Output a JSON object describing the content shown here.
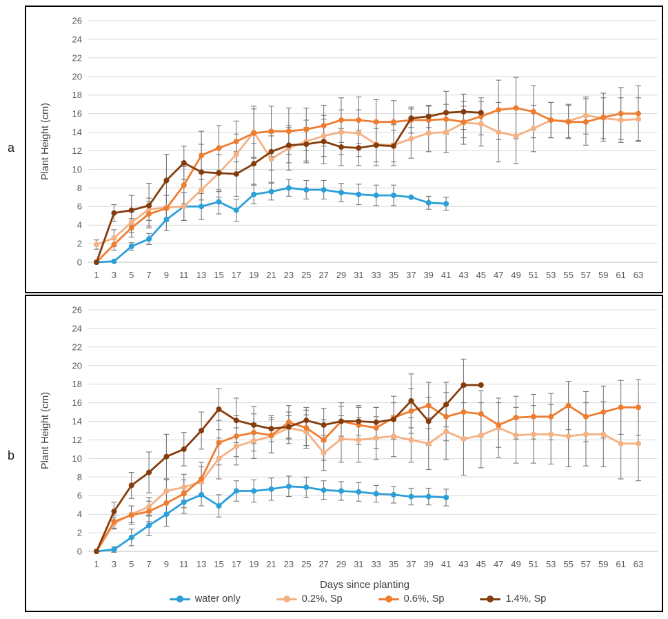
{
  "panels": [
    {
      "label": "a"
    },
    {
      "label": "b"
    }
  ],
  "legend": {
    "items": [
      {
        "label": "water only",
        "color": "#2C9FD8"
      },
      {
        "label": "0.2%, Sp",
        "color": "#F4B183"
      },
      {
        "label": "0.6%, Sp",
        "color": "#ED7D31"
      },
      {
        "label": "1.4%, Sp",
        "color": "#843C0C"
      }
    ]
  },
  "colors": {
    "gridline": "#D9D9D9",
    "axis_line": "#BFBFBF",
    "error_bar": "#777777",
    "tick_text": "#595959"
  },
  "chart_data": [
    {
      "type": "line",
      "panel": "a",
      "title": "",
      "xlabel": "",
      "ylabel": "Plant Height (cm)",
      "ylim": [
        0,
        26
      ],
      "ytick_step": 2,
      "grid": true,
      "legend_position": "bottom",
      "xticks": [
        1,
        3,
        5,
        7,
        9,
        11,
        13,
        15,
        17,
        19,
        21,
        23,
        25,
        27,
        29,
        31,
        33,
        35,
        37,
        39,
        41,
        43,
        45,
        47,
        49,
        51,
        53,
        55,
        57,
        59,
        61,
        63
      ],
      "series": [
        {
          "name": "water only",
          "color": "#2C9FD8",
          "x": [
            1,
            3,
            5,
            7,
            9,
            11,
            13,
            15,
            17,
            19,
            21,
            23,
            25,
            27,
            29,
            31,
            33,
            35,
            37,
            39,
            41
          ],
          "y": [
            0,
            0.1,
            1.7,
            2.5,
            4.6,
            6.0,
            6.0,
            6.5,
            5.6,
            7.3,
            7.6,
            8.0,
            7.8,
            7.8,
            7.5,
            7.3,
            7.2,
            7.2,
            7.0,
            6.4,
            6.3
          ],
          "err": [
            0,
            0,
            0.4,
            0.6,
            1.2,
            1.5,
            1.4,
            1.3,
            1.2,
            1.0,
            0.9,
            0.9,
            1.0,
            1.0,
            1.0,
            1.1,
            1.1,
            1.1,
            0,
            0.7,
            0.7
          ]
        },
        {
          "name": "0.2%, Sp",
          "color": "#F4B183",
          "x": [
            1,
            3,
            5,
            7,
            9,
            11,
            13,
            15,
            17,
            19,
            21,
            23,
            25,
            27,
            29,
            31,
            33,
            35,
            37,
            39,
            41,
            43,
            45,
            47,
            49,
            51,
            53,
            55,
            57,
            59,
            61,
            63
          ],
          "y": [
            1.9,
            2.6,
            4.3,
            5.7,
            5.9,
            6.0,
            7.8,
            9.6,
            11.6,
            14.0,
            11.1,
            12.3,
            13.0,
            13.6,
            14.0,
            13.9,
            12.7,
            12.6,
            13.3,
            13.9,
            14.0,
            15.0,
            14.9,
            14.0,
            13.6,
            14.4,
            15.3,
            15.2,
            15.8,
            15.5,
            15.3,
            15.4
          ],
          "err": [
            0.5,
            0.9,
            1.1,
            1.2,
            1.3,
            1.5,
            1.8,
            2.0,
            2.2,
            2.8,
            2.5,
            2.4,
            2.3,
            2.2,
            2.4,
            2.5,
            2.3,
            2.2,
            2.1,
            2.0,
            2.2,
            2.3,
            2.4,
            3.2,
            3.0,
            2.5,
            1.9,
            1.8,
            2.0,
            2.2,
            2.4,
            2.3
          ]
        },
        {
          "name": "0.6%, Sp",
          "color": "#ED7D31",
          "x": [
            1,
            3,
            5,
            7,
            9,
            11,
            13,
            15,
            17,
            19,
            21,
            23,
            25,
            27,
            29,
            31,
            33,
            35,
            37,
            39,
            41,
            43,
            45,
            47,
            49,
            51,
            53,
            55,
            57,
            59,
            61,
            63
          ],
          "y": [
            0,
            1.9,
            3.7,
            5.2,
            5.8,
            8.3,
            11.5,
            12.3,
            13.0,
            13.9,
            14.1,
            14.1,
            14.3,
            14.7,
            15.3,
            15.3,
            15.1,
            15.1,
            15.3,
            15.3,
            15.4,
            15.1,
            15.7,
            16.4,
            16.6,
            16.2,
            15.3,
            15.1,
            15.1,
            15.6,
            16.0,
            16.0
          ],
          "err": [
            0,
            0.6,
            1.0,
            1.3,
            1.4,
            2.0,
            2.6,
            2.4,
            2.2,
            2.6,
            2.7,
            2.5,
            2.3,
            2.2,
            2.4,
            2.5,
            2.4,
            2.3,
            1.4,
            1.5,
            1.6,
            1.7,
            2.0,
            3.2,
            3.3,
            2.8,
            1.9,
            1.8,
            2.5,
            2.6,
            2.8,
            3.0
          ]
        },
        {
          "name": "1.4%, Sp",
          "color": "#843C0C",
          "x": [
            1,
            3,
            5,
            7,
            9,
            11,
            13,
            15,
            17,
            19,
            21,
            23,
            25,
            27,
            29,
            31,
            33,
            35,
            37,
            39,
            41,
            43,
            45
          ],
          "y": [
            0,
            5.3,
            5.6,
            6.1,
            8.8,
            10.7,
            9.7,
            9.6,
            9.5,
            10.6,
            11.9,
            12.6,
            12.7,
            13.0,
            12.4,
            12.3,
            12.6,
            12.5,
            15.5,
            15.7,
            16.1,
            16.2,
            16.1
          ],
          "err": [
            0,
            0.9,
            1.6,
            2.4,
            2.8,
            1.8,
            3.0,
            2.6,
            2.4,
            2.2,
            2.0,
            1.9,
            1.8,
            2.4,
            2.0,
            1.9,
            1.8,
            1.7,
            1.0,
            1.2,
            2.3,
            1.9,
            0
          ]
        }
      ]
    },
    {
      "type": "line",
      "panel": "b",
      "title": "",
      "xlabel": "Days since planting",
      "ylabel": "Plant Height (cm)",
      "ylim": [
        0,
        26
      ],
      "ytick_step": 2,
      "grid": true,
      "legend_position": "bottom",
      "xticks": [
        1,
        3,
        5,
        7,
        9,
        11,
        13,
        15,
        17,
        19,
        21,
        23,
        25,
        27,
        29,
        31,
        33,
        35,
        37,
        39,
        41,
        43,
        45,
        47,
        49,
        51,
        53,
        55,
        57,
        59,
        61,
        63
      ],
      "series": [
        {
          "name": "water only",
          "color": "#2C9FD8",
          "x": [
            1,
            3,
            5,
            7,
            9,
            11,
            13,
            15,
            17,
            19,
            21,
            23,
            25,
            27,
            29,
            31,
            33,
            35,
            37,
            39,
            41
          ],
          "y": [
            0,
            0.2,
            1.5,
            2.8,
            4.0,
            5.3,
            6.1,
            4.9,
            6.5,
            6.5,
            6.7,
            7.0,
            6.9,
            6.6,
            6.5,
            6.4,
            6.2,
            6.1,
            5.9,
            5.9,
            5.8
          ],
          "err": [
            0,
            0.3,
            0.9,
            1.1,
            1.3,
            1.2,
            1.2,
            1.2,
            1.1,
            1.2,
            1.2,
            1.1,
            1.1,
            1.0,
            1.0,
            1.0,
            0.9,
            0.9,
            0.9,
            0.9,
            0.9
          ]
        },
        {
          "name": "0.2%, Sp",
          "color": "#F4B183",
          "x": [
            1,
            3,
            5,
            7,
            9,
            11,
            13,
            15,
            17,
            19,
            21,
            23,
            25,
            27,
            29,
            31,
            33,
            35,
            37,
            39,
            41,
            43,
            45,
            47,
            49,
            51,
            53,
            55,
            57,
            59,
            61,
            63
          ],
          "y": [
            0,
            3.0,
            4.0,
            4.8,
            6.5,
            6.9,
            7.5,
            10.0,
            11.3,
            11.9,
            12.4,
            13.3,
            12.9,
            10.6,
            12.1,
            12.0,
            12.2,
            12.4,
            12.0,
            11.6,
            12.9,
            12.1,
            12.5,
            13.3,
            12.5,
            12.6,
            12.6,
            12.4,
            12.6,
            12.6,
            11.6,
            11.6
          ],
          "err": [
            0,
            0.6,
            0.9,
            1.0,
            1.2,
            1.4,
            1.6,
            2.2,
            2.0,
            1.9,
            1.8,
            1.7,
            1.8,
            1.9,
            2.5,
            2.4,
            2.3,
            2.2,
            2.4,
            2.8,
            3.0,
            3.9,
            3.5,
            3.2,
            3.0,
            3.1,
            3.2,
            3.3,
            3.4,
            3.5,
            3.8,
            4.0
          ]
        },
        {
          "name": "0.6%, Sp",
          "color": "#ED7D31",
          "x": [
            1,
            3,
            5,
            7,
            9,
            11,
            13,
            15,
            17,
            19,
            21,
            23,
            25,
            27,
            29,
            31,
            33,
            35,
            37,
            39,
            41,
            43,
            45,
            47,
            49,
            51,
            53,
            55,
            57,
            59,
            61,
            63
          ],
          "y": [
            0,
            3.2,
            3.9,
            4.3,
            5.2,
            6.2,
            7.8,
            11.7,
            12.4,
            12.8,
            12.5,
            13.9,
            13.3,
            12.0,
            14.0,
            13.6,
            13.3,
            14.4,
            15.1,
            15.7,
            14.5,
            15.0,
            14.8,
            13.6,
            14.4,
            14.5,
            14.5,
            15.7,
            14.5,
            15.0,
            15.5,
            15.5
          ],
          "err": [
            0,
            0.7,
            1.0,
            1.1,
            1.3,
            1.5,
            1.8,
            2.4,
            2.2,
            2.0,
            1.9,
            1.8,
            1.9,
            2.2,
            2.0,
            2.1,
            2.2,
            2.3,
            2.4,
            2.5,
            2.6,
            2.7,
            2.5,
            2.4,
            2.3,
            2.4,
            2.5,
            2.6,
            2.7,
            2.8,
            2.9,
            3.0
          ]
        },
        {
          "name": "1.4%, Sp",
          "color": "#843C0C",
          "x": [
            1,
            3,
            5,
            7,
            9,
            11,
            13,
            15,
            17,
            19,
            21,
            23,
            25,
            27,
            29,
            31,
            33,
            35,
            37,
            39,
            41,
            43,
            45
          ],
          "y": [
            0,
            4.3,
            7.1,
            8.5,
            10.2,
            11.0,
            13.0,
            15.3,
            14.1,
            13.6,
            13.2,
            13.4,
            14.1,
            13.6,
            14.0,
            14.0,
            13.9,
            14.2,
            16.2,
            14.0,
            15.8,
            17.9,
            17.9
          ],
          "err": [
            0,
            1.0,
            1.4,
            2.2,
            2.4,
            1.8,
            2.0,
            2.2,
            2.4,
            2.0,
            1.4,
            1.2,
            1.4,
            1.8,
            1.6,
            1.5,
            1.6,
            1.8,
            2.9,
            2.6,
            2.4,
            2.8,
            0
          ]
        }
      ]
    }
  ]
}
